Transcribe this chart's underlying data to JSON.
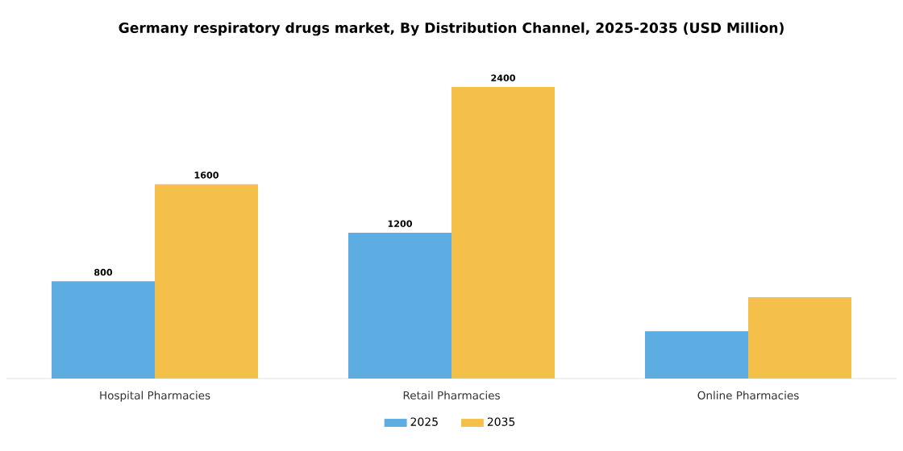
{
  "chart_data": {
    "type": "bar",
    "title": "Germany respiratory drugs market, By Distribution Channel, 2025-2035 (USD Million)",
    "categories": [
      "Hospital Pharmacies",
      "Retail Pharmacies",
      "Online Pharmacies"
    ],
    "series": [
      {
        "name": "2025",
        "color": "#5dade2",
        "values": [
          800,
          1200,
          390
        ],
        "value_labels": [
          "800",
          "1200",
          null
        ]
      },
      {
        "name": "2035",
        "color": "#f5c04a",
        "values": [
          1600,
          2400,
          670
        ],
        "value_labels": [
          "1600",
          "2400",
          null
        ]
      }
    ],
    "legend": "bottom"
  }
}
